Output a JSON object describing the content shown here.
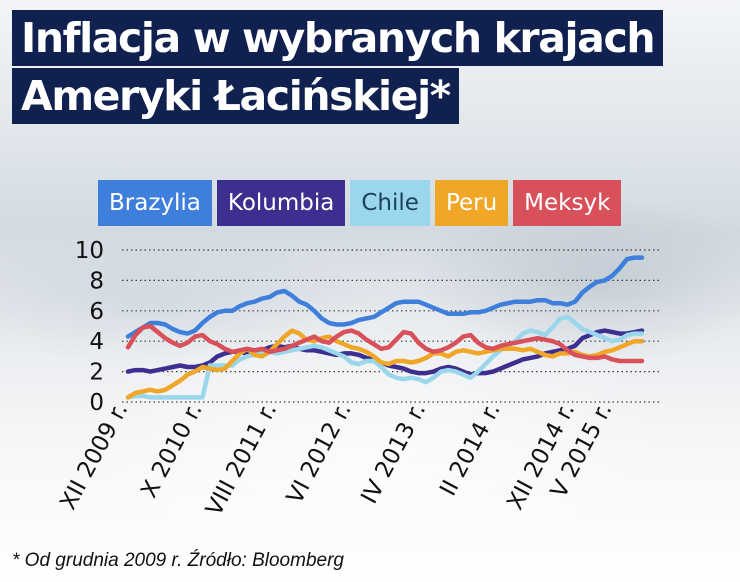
{
  "title": {
    "line1": "Inflacja w wybranych krajach",
    "line2": "Ameryki Łacińskiej*"
  },
  "footnote": "* Od grudnia 2009 r. Źródło: Bloomberg",
  "colors": {
    "title_bg": "#10204f",
    "Brazylia": "#3f7fdc",
    "Kolumbia": "#3c2f8f",
    "Chile": "#9bd7ec",
    "Peru": "#f0a626",
    "Meksyk": "#d8505a"
  },
  "chart_data": {
    "type": "line",
    "ylim": [
      0,
      10
    ],
    "y_ticks": [
      "0",
      "2",
      "4",
      "6",
      "8",
      "10"
    ],
    "x_tick_labels": [
      "XII 2009 r.",
      "X 2010 r.",
      "VIII 2011 r.",
      "VI 2012 r.",
      "IV 2013 r.",
      "II 2014 r.",
      "XII 2014 r.",
      "V 2015 r."
    ],
    "x_tick_index": [
      0,
      10,
      20,
      30,
      40,
      50,
      60,
      65
    ],
    "grid": "horizontal dotted",
    "legend": "top",
    "series": [
      {
        "name": "Brazylia",
        "values": [
          4.3,
          4.6,
          4.9,
          5.2,
          5.2,
          5.1,
          4.8,
          4.6,
          4.5,
          4.7,
          5.2,
          5.6,
          5.9,
          6.0,
          6.0,
          6.3,
          6.5,
          6.6,
          6.8,
          6.9,
          7.2,
          7.3,
          7.0,
          6.6,
          6.4,
          6.0,
          5.5,
          5.2,
          5.1,
          5.1,
          5.2,
          5.4,
          5.5,
          5.6,
          5.9,
          6.2,
          6.5,
          6.6,
          6.6,
          6.6,
          6.4,
          6.2,
          6.0,
          5.8,
          5.8,
          5.8,
          5.9,
          5.9,
          6.0,
          6.2,
          6.4,
          6.5,
          6.6,
          6.6,
          6.6,
          6.7,
          6.7,
          6.5,
          6.5,
          6.4,
          6.6,
          7.2,
          7.6,
          7.9,
          8.0,
          8.3,
          8.8,
          9.4,
          9.5,
          9.5
        ]
      },
      {
        "name": "Kolumbia",
        "values": [
          2.0,
          2.1,
          2.1,
          2.0,
          2.1,
          2.2,
          2.3,
          2.4,
          2.3,
          2.3,
          2.4,
          2.6,
          3.0,
          3.2,
          3.3,
          3.3,
          3.2,
          3.1,
          3.4,
          3.6,
          3.7,
          3.6,
          3.7,
          3.5,
          3.4,
          3.4,
          3.3,
          3.2,
          3.1,
          3.2,
          3.2,
          3.1,
          2.9,
          2.8,
          2.6,
          2.4,
          2.3,
          2.2,
          2.0,
          1.9,
          1.9,
          2.0,
          2.2,
          2.3,
          2.2,
          2.0,
          1.8,
          1.9,
          1.9,
          2.0,
          2.2,
          2.4,
          2.6,
          2.8,
          2.9,
          3.0,
          3.2,
          3.3,
          3.4,
          3.5,
          3.7,
          4.2,
          4.4,
          4.6,
          4.7,
          4.6,
          4.5,
          4.5,
          4.6,
          4.7
        ]
      },
      {
        "name": "Chile",
        "values": [
          0.3,
          0.4,
          0.4,
          0.3,
          0.3,
          0.3,
          0.3,
          0.3,
          0.3,
          0.3,
          0.3,
          2.4,
          2.4,
          2.4,
          2.4,
          2.8,
          3.0,
          3.1,
          3.2,
          3.3,
          3.2,
          3.3,
          3.4,
          3.5,
          3.6,
          3.7,
          3.6,
          3.4,
          3.2,
          3.0,
          2.6,
          2.5,
          2.7,
          2.7,
          2.3,
          1.8,
          1.6,
          1.5,
          1.6,
          1.5,
          1.3,
          1.6,
          2.0,
          2.1,
          2.0,
          1.8,
          1.6,
          2.0,
          2.5,
          3.0,
          3.4,
          3.7,
          4.0,
          4.5,
          4.7,
          4.6,
          4.4,
          4.9,
          5.5,
          5.6,
          5.2,
          4.8,
          4.6,
          4.4,
          4.2,
          4.0,
          4.1,
          4.4,
          4.5,
          4.5
        ]
      },
      {
        "name": "Peru",
        "values": [
          0.3,
          0.6,
          0.7,
          0.8,
          0.7,
          0.8,
          1.1,
          1.4,
          1.8,
          2.0,
          2.3,
          2.2,
          2.1,
          2.2,
          2.7,
          3.2,
          3.5,
          3.1,
          3.0,
          3.3,
          3.8,
          4.3,
          4.7,
          4.5,
          4.1,
          4.0,
          4.2,
          4.3,
          4.0,
          3.8,
          3.6,
          3.5,
          3.3,
          3.0,
          2.6,
          2.5,
          2.7,
          2.7,
          2.6,
          2.7,
          2.9,
          3.2,
          3.2,
          3.0,
          3.3,
          3.4,
          3.3,
          3.2,
          3.3,
          3.4,
          3.5,
          3.5,
          3.5,
          3.4,
          3.5,
          3.3,
          3.1,
          3.0,
          3.2,
          3.2,
          3.3,
          3.1,
          3.0,
          3.1,
          3.3,
          3.4,
          3.6,
          3.8,
          4.0,
          4.0
        ]
      },
      {
        "name": "Meksyk",
        "values": [
          3.6,
          4.4,
          4.9,
          5.0,
          4.6,
          4.2,
          3.9,
          3.7,
          3.9,
          4.3,
          4.4,
          4.0,
          3.8,
          3.5,
          3.3,
          3.4,
          3.5,
          3.4,
          3.5,
          3.3,
          3.4,
          3.5,
          3.7,
          3.9,
          4.1,
          4.3,
          4.0,
          3.9,
          4.3,
          4.6,
          4.7,
          4.5,
          4.1,
          3.8,
          3.5,
          3.6,
          4.1,
          4.6,
          4.5,
          3.9,
          3.5,
          3.3,
          3.4,
          3.6,
          3.9,
          4.3,
          4.4,
          3.9,
          3.6,
          3.5,
          3.7,
          3.8,
          3.9,
          4.0,
          4.1,
          4.2,
          4.1,
          4.0,
          3.8,
          3.4,
          3.1,
          3.0,
          2.9,
          2.9,
          3.0,
          2.8,
          2.7,
          2.7,
          2.7,
          2.7
        ]
      }
    ]
  }
}
